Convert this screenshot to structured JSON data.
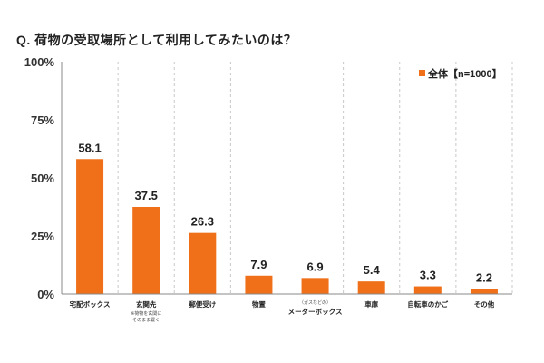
{
  "question": "Q. 荷物の受取場所として利用してみたいのは？",
  "chart_data": {
    "type": "bar",
    "title": "Q. 荷物の受取場所として利用してみたいのは？",
    "categories": [
      "宅配ボックス",
      "玄関先",
      "郵便受け",
      "物置",
      "メーターボックス",
      "車庫",
      "自転車のかご",
      "その他"
    ],
    "category_notes": [
      "",
      "※荷物を玄関に\nそのまま置く",
      "",
      "",
      "（ガスなどの）",
      "",
      "",
      ""
    ],
    "series": [
      {
        "name": "全体【n=1000】",
        "values": [
          58.1,
          37.5,
          26.3,
          7.9,
          6.9,
          5.4,
          3.3,
          2.2
        ]
      }
    ],
    "y_ticks": [
      "0%",
      "25%",
      "50%",
      "75%",
      "100%"
    ],
    "ylim": [
      0,
      100
    ],
    "grid": "vertical dashed separators between categories",
    "legend_position": "top-right",
    "colors": {
      "bar": "#f07019",
      "axis": "#888888",
      "grid": "#c8c8c8"
    }
  }
}
